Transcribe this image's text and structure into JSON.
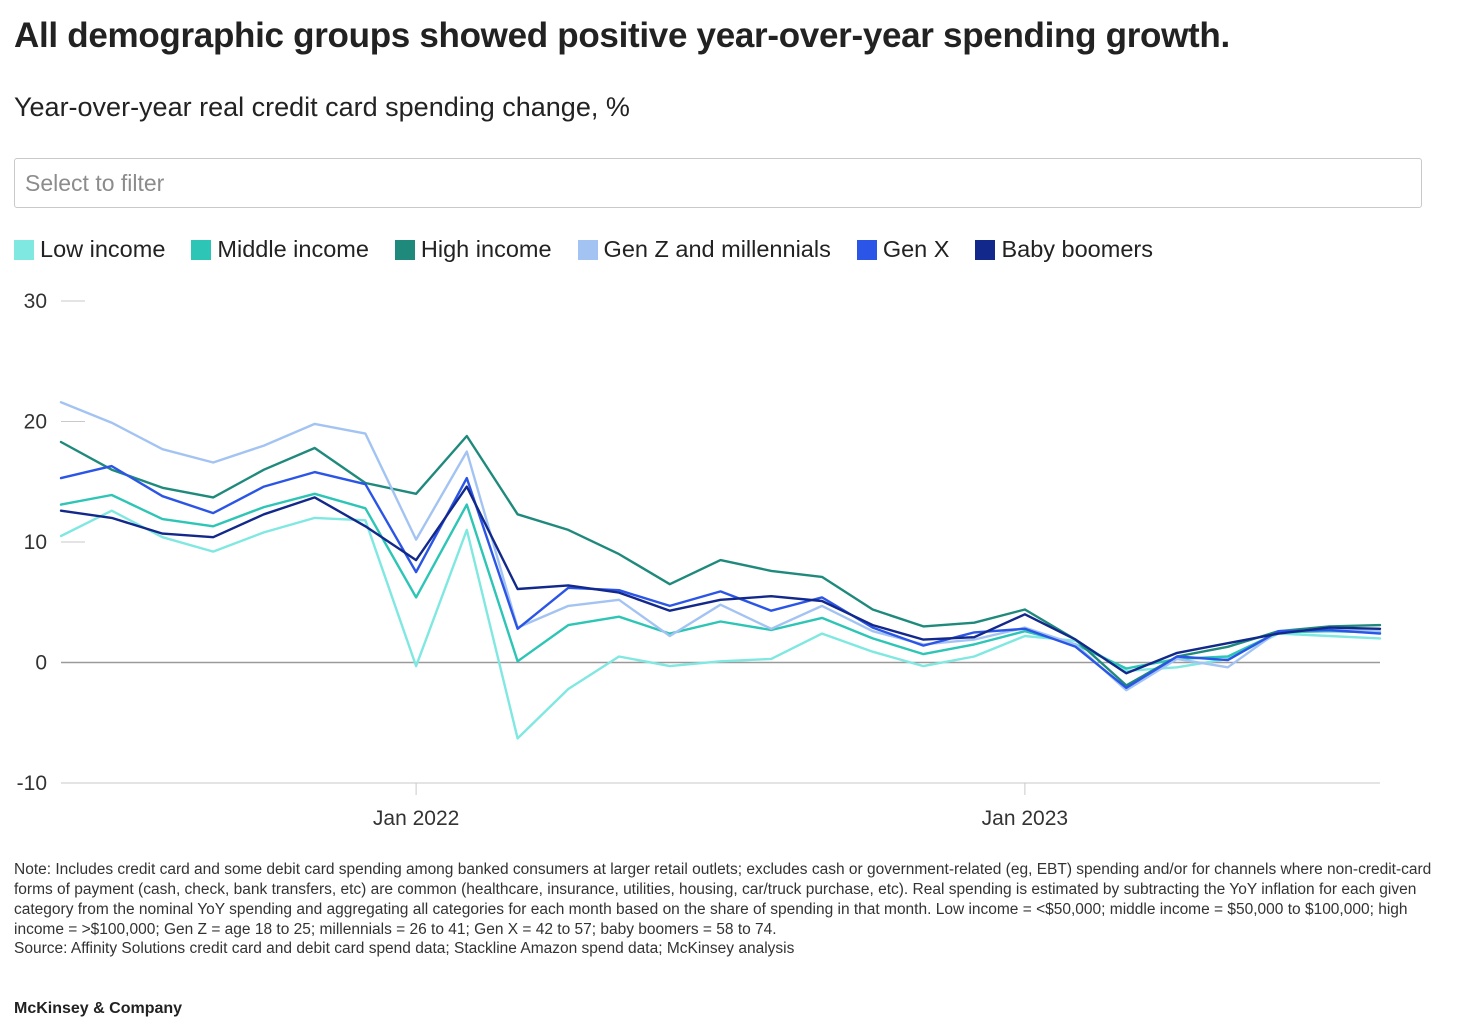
{
  "title": "All demographic groups showed positive year-over-year spending growth.",
  "subtitle": "Year-over-year real credit card spending change, %",
  "filter": {
    "placeholder": "Select to filter"
  },
  "note": "Note: Includes credit card and some debit card spending among banked consumers at larger retail outlets; excludes cash or government-related (eg, EBT) spending and/or for channels where non-credit-card forms of payment (cash, check, bank transfers, etc) are common (healthcare, insurance, utilities, housing, car/truck purchase, etc). Real spending is estimated by subtracting the YoY inflation for each given category from the nominal YoY spending and aggregating all categories for each month based on the share of spending in that month. Low income = <$50,000; middle income = $50,000 to $100,000; high income = >$100,000; Gen Z = age 18 to 25; millennials = 26 to 41; Gen X = 42 to 57; baby boomers = 58 to 74.",
  "source": "Source: Affinity Solutions credit card and debit card spend data; Stackline Amazon spend data; McKinsey analysis",
  "brand": "McKinsey & Company",
  "chart_data": {
    "type": "line",
    "x": [
      "Jun 2021",
      "Jul 2021",
      "Aug 2021",
      "Sep 2021",
      "Oct 2021",
      "Nov 2021",
      "Dec 2021",
      "Jan 2022",
      "Feb 2022",
      "Mar 2022",
      "Apr 2022",
      "May 2022",
      "Jun 2022",
      "Jul 2022",
      "Aug 2022",
      "Sep 2022",
      "Oct 2022",
      "Nov 2022",
      "Dec 2022",
      "Jan 2023",
      "Feb 2023",
      "Mar 2023",
      "Apr 2023",
      "May 2023",
      "Jun 2023",
      "Jul 2023",
      "Aug 2023"
    ],
    "x_ticks": [
      {
        "label": "Jan 2022",
        "value": "Jan 2022"
      },
      {
        "label": "Jan 2023",
        "value": "Jan 2023"
      }
    ],
    "ylim": [
      -10,
      30
    ],
    "yticks": [
      -10,
      0,
      10,
      20,
      30
    ],
    "xlabel": "",
    "ylabel": "",
    "legend_position": "top",
    "zero_line": true,
    "series": [
      {
        "name": "Low income",
        "color": "#7fe8e0",
        "values": [
          10.5,
          12.6,
          10.4,
          9.2,
          10.8,
          12.0,
          11.8,
          -0.3,
          11.0,
          -6.3,
          -2.2,
          0.5,
          -0.3,
          0.1,
          0.3,
          2.4,
          0.9,
          -0.3,
          0.5,
          2.2,
          1.8,
          -0.7,
          -0.4,
          0.3,
          2.4,
          2.2,
          2.0
        ]
      },
      {
        "name": "Middle income",
        "color": "#2dc5b5",
        "values": [
          13.1,
          13.9,
          11.9,
          11.3,
          12.9,
          14.0,
          12.8,
          5.4,
          13.1,
          0.1,
          3.1,
          3.8,
          2.4,
          3.4,
          2.7,
          3.7,
          2.0,
          0.7,
          1.5,
          2.6,
          1.5,
          -0.5,
          0.3,
          0.5,
          2.5,
          2.6,
          2.5
        ]
      },
      {
        "name": "High income",
        "color": "#1f8a7c",
        "values": [
          18.3,
          16.0,
          14.5,
          13.7,
          16.0,
          17.8,
          14.9,
          14.0,
          18.8,
          12.3,
          11.0,
          9.0,
          6.5,
          8.5,
          7.6,
          7.1,
          4.4,
          3.0,
          3.3,
          4.4,
          1.9,
          -1.9,
          0.5,
          1.3,
          2.6,
          3.0,
          3.1
        ]
      },
      {
        "name": "Gen Z and millennials",
        "color": "#a3c4f3",
        "values": [
          21.6,
          19.9,
          17.7,
          16.6,
          18.0,
          19.8,
          19.0,
          10.2,
          17.5,
          2.9,
          4.7,
          5.2,
          2.2,
          4.8,
          2.8,
          4.7,
          2.6,
          1.5,
          1.9,
          2.9,
          1.5,
          -2.3,
          0.3,
          -0.4,
          2.6,
          2.7,
          2.6
        ]
      },
      {
        "name": "Gen X",
        "color": "#2b55e6",
        "values": [
          15.3,
          16.3,
          13.8,
          12.4,
          14.6,
          15.8,
          14.8,
          7.5,
          15.3,
          2.8,
          6.2,
          6.0,
          4.7,
          5.9,
          4.3,
          5.4,
          2.9,
          1.4,
          2.5,
          2.8,
          1.3,
          -2.1,
          0.5,
          0.2,
          2.6,
          2.7,
          2.4
        ]
      },
      {
        "name": "Baby boomers",
        "color": "#12288a",
        "values": [
          12.6,
          12.0,
          10.7,
          10.4,
          12.3,
          13.7,
          11.3,
          8.5,
          14.6,
          6.1,
          6.4,
          5.8,
          4.3,
          5.2,
          5.5,
          5.1,
          3.1,
          1.9,
          2.1,
          4.0,
          1.9,
          -0.9,
          0.8,
          1.6,
          2.4,
          2.9,
          2.8
        ]
      }
    ]
  }
}
